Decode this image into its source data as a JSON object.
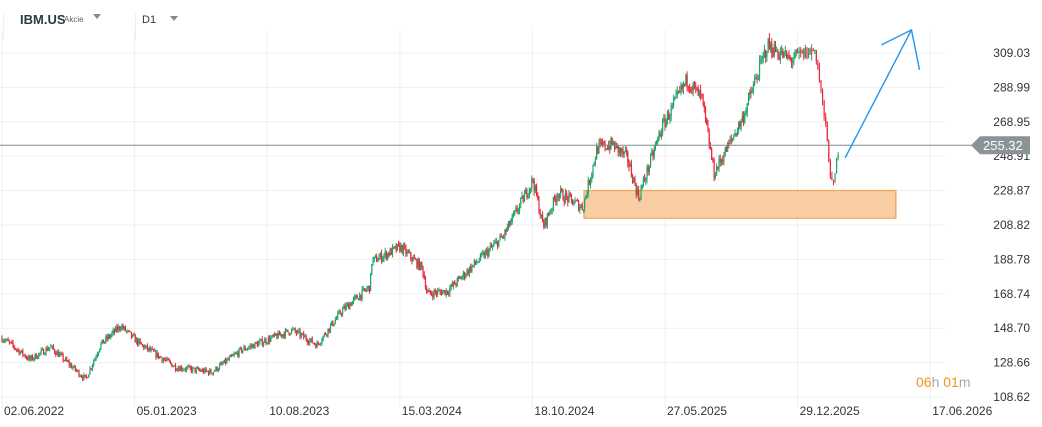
{
  "header": {
    "symbol": "IBM.US",
    "instrument_type": "Akcie",
    "timeframe": "D1"
  },
  "timer": {
    "hours": "06",
    "h_unit": "h",
    "minutes": "01",
    "m_unit": "m"
  },
  "colors": {
    "up": "#1fa56b",
    "down": "#e8283a",
    "zone_fill": "#f8c99a",
    "zone_border": "#f0a34f",
    "arrow": "#2196f3",
    "price_line": "#7f8a8e",
    "price_label_bg": "#8a9396"
  },
  "chart_data": {
    "type": "candlestick",
    "y_ticks": [
      "309.03",
      "288.99",
      "268.95",
      "248.91",
      "228.87",
      "208.82",
      "188.78",
      "168.74",
      "148.70",
      "128.66",
      "108.62"
    ],
    "ylim": [
      108.62,
      309.03
    ],
    "x_ticks": [
      "02.06.2022",
      "05.01.2023",
      "10.08.2023",
      "15.03.2024",
      "18.10.2024",
      "27.05.2025",
      "29.12.2025",
      "17.06.2026"
    ],
    "grid": true,
    "current_price": "255.32",
    "close_path": [
      [
        "2022-06-02",
        143
      ],
      [
        "2022-06-07",
        141.8
      ],
      [
        "2022-07-18",
        130.4
      ],
      [
        "2022-08-20",
        137.8
      ],
      [
        "2022-10-17",
        119
      ],
      [
        "2022-11-10",
        139
      ],
      [
        "2022-12-13",
        150
      ],
      [
        "2023-01-15",
        139
      ],
      [
        "2023-03-14",
        126
      ],
      [
        "2023-05-11",
        123
      ],
      [
        "2023-06-29",
        136
      ],
      [
        "2023-09-20",
        147.6
      ],
      [
        "2023-10-31",
        139
      ],
      [
        "2023-12-11",
        159
      ],
      [
        "2024-01-26",
        173
      ],
      [
        "2024-01-29",
        187.6
      ],
      [
        "2024-03-16",
        196
      ],
      [
        "2024-04-21",
        183.6
      ],
      [
        "2024-04-29",
        168.7
      ],
      [
        "2024-06-01",
        170.4
      ],
      [
        "2024-07-12",
        184.8
      ],
      [
        "2024-08-31",
        202
      ],
      [
        "2024-10-19",
        235
      ],
      [
        "2024-11-05",
        207.7
      ],
      [
        "2024-11-29",
        227.7
      ],
      [
        "2025-01-10",
        219
      ],
      [
        "2025-02-03",
        253.5
      ],
      [
        "2025-02-28",
        256
      ],
      [
        "2025-03-25",
        247.8
      ],
      [
        "2025-04-13",
        225
      ],
      [
        "2025-05-21",
        265
      ],
      [
        "2025-07-02",
        293.6
      ],
      [
        "2025-07-26",
        282
      ],
      [
        "2025-08-15",
        239
      ],
      [
        "2025-09-30",
        270.7
      ],
      [
        "2025-11-10",
        313.6
      ],
      [
        "2025-12-17",
        305
      ],
      [
        "2026-01-21",
        311
      ],
      [
        "2026-02-03",
        265
      ],
      [
        "2026-02-12",
        227.7
      ],
      [
        "2026-02-20",
        256
      ]
    ],
    "support_zone": {
      "from": "2025-01-12",
      "to": "2026-05-04",
      "low": 212.8,
      "high": 228.9
    },
    "projection_arrow": [
      [
        "2026-02-28",
        248
      ],
      [
        "2026-05-24",
        322.5
      ]
    ]
  }
}
